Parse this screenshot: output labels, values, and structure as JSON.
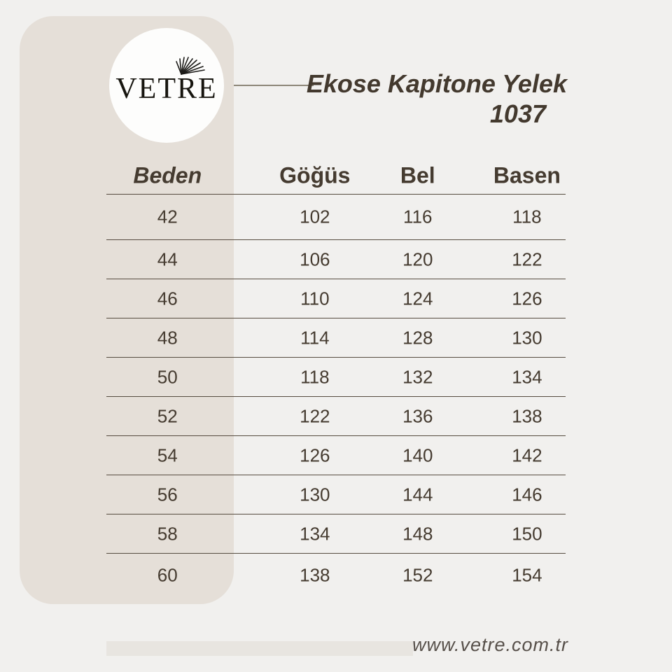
{
  "brand": {
    "logo_text": "VETRE"
  },
  "header": {
    "title_line1": "Ekose Kapitone Yelek",
    "title_line2": "1037"
  },
  "chart_data": {
    "type": "table",
    "title": "Ekose Kapitone Yelek 1037",
    "columns": [
      "Beden",
      "Göğüs",
      "Bel",
      "Basen"
    ],
    "rows": [
      [
        42,
        102,
        116,
        118
      ],
      [
        44,
        106,
        120,
        122
      ],
      [
        46,
        110,
        124,
        126
      ],
      [
        48,
        114,
        128,
        130
      ],
      [
        50,
        118,
        132,
        134
      ],
      [
        52,
        122,
        136,
        138
      ],
      [
        54,
        126,
        140,
        142
      ],
      [
        56,
        130,
        144,
        146
      ],
      [
        58,
        134,
        148,
        150
      ],
      [
        60,
        138,
        152,
        154
      ]
    ]
  },
  "footer": {
    "website": "www.vetre.com.tr"
  },
  "colors": {
    "background": "#f1f0ee",
    "panel": "#e5dfd8",
    "circle": "#fdfdfc",
    "text": "#453b30",
    "rule_line": "#564c40",
    "connector": "#8d8779",
    "footer_bar": "#e8e5e0",
    "footer_text": "#57504a"
  }
}
